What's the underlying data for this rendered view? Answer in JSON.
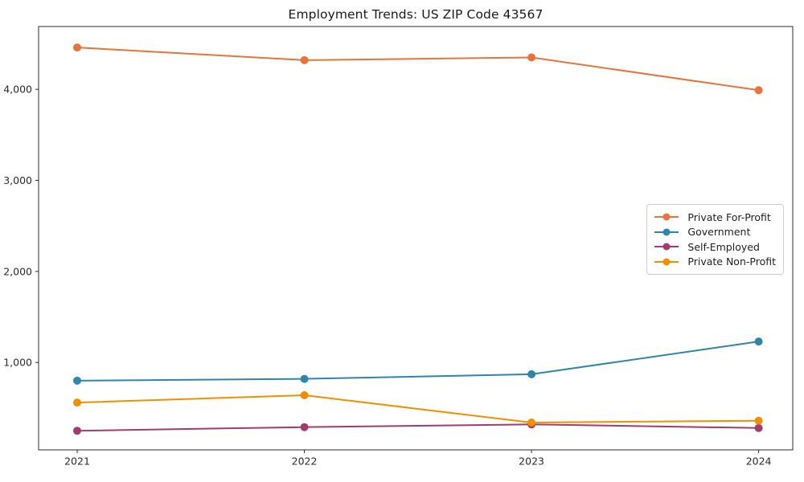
{
  "chart_data": {
    "type": "line",
    "title": "Employment Trends: US ZIP Code 43567",
    "xlabel": "",
    "ylabel": "",
    "x": [
      2021,
      2022,
      2023,
      2024
    ],
    "x_tick_labels": [
      "2021",
      "2022",
      "2023",
      "2024"
    ],
    "yticks": [
      {
        "value": 1000,
        "label": "1,000"
      },
      {
        "value": 2000,
        "label": "2,000"
      },
      {
        "value": 3000,
        "label": "3,000"
      },
      {
        "value": 4000,
        "label": "4,000"
      }
    ],
    "xlim": [
      2020.83,
      2024.15
    ],
    "ylim": [
      40,
      4690
    ],
    "grid": false,
    "legend_position": "center right",
    "series": [
      {
        "name": "Private For-Profit",
        "color": "#E8743B",
        "values": [
          4460,
          4320,
          4350,
          3990
        ]
      },
      {
        "name": "Government",
        "color": "#2E86AB",
        "values": [
          800,
          820,
          870,
          1230
        ]
      },
      {
        "name": "Self-Employed",
        "color": "#A23B72",
        "values": [
          250,
          290,
          320,
          280
        ]
      },
      {
        "name": "Private Non-Profit",
        "color": "#F18F01",
        "values": [
          560,
          640,
          340,
          360
        ]
      }
    ]
  }
}
